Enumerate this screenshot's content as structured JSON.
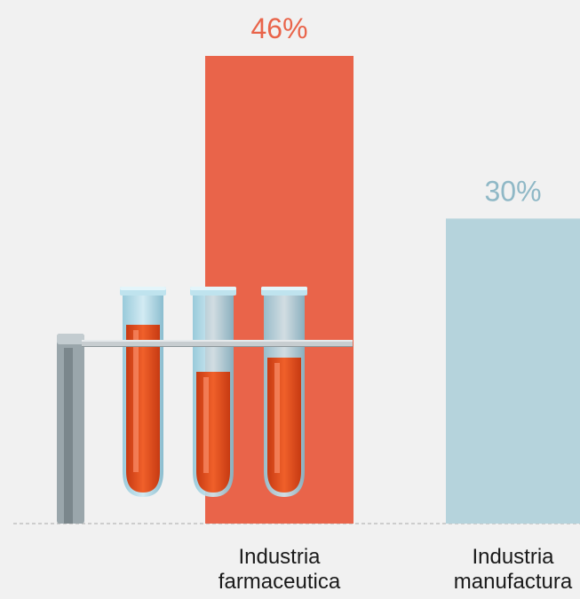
{
  "chart_data": {
    "type": "bar",
    "categories": [
      [
        "Industria",
        "farmaceutica"
      ],
      [
        "Industria",
        "manufactura"
      ]
    ],
    "values": [
      46,
      30
    ],
    "data_labels": [
      "46%",
      "30%"
    ],
    "colors": [
      "#e9644a",
      "#b5d3dc"
    ],
    "label_colors": [
      "#e9644a",
      "#8fb8c6"
    ],
    "unit": "%",
    "ylim": [
      0,
      46
    ],
    "grid": false,
    "legend": "none",
    "decoration": "test-tube-rack"
  }
}
